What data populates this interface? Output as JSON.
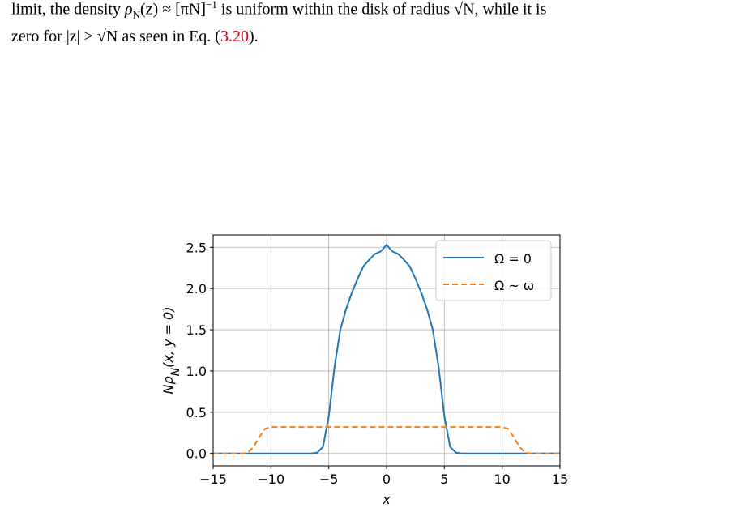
{
  "paragraph": [
    [
      {
        "text": "limit, the density "
      },
      {
        "text": "ρ",
        "style": "italic"
      },
      {
        "text": "N",
        "style": "sub"
      },
      {
        "text": "(z) ≈ [πN]"
      },
      {
        "text": "−1",
        "style": "sup"
      },
      {
        "text": " is uniform within the disk of radius √N, while it is"
      }
    ],
    [
      {
        "text": "zero for |z| > √N as seen in Eq. ("
      },
      {
        "text": "3.20",
        "style": "ref"
      },
      {
        "text": ")."
      }
    ]
  ],
  "chart_data": {
    "type": "line",
    "xlabel": "x",
    "ylabel": [
      "Nρ",
      "N",
      "(x, y = 0)"
    ],
    "x": [
      -15,
      -14.5,
      -14,
      -13.5,
      -13,
      -12.5,
      -12,
      -11.5,
      -11,
      -10.5,
      -10,
      -9.5,
      -9,
      -8.5,
      -8,
      -7.5,
      -7,
      -6.5,
      -6,
      -5.5,
      -5,
      -4.5,
      -4,
      -3.5,
      -3,
      -2.5,
      -2,
      -1.5,
      -1,
      -0.5,
      0,
      0.5,
      1,
      1.5,
      2,
      2.5,
      3,
      3.5,
      4,
      4.5,
      5,
      5.5,
      6,
      6.5,
      7,
      7.5,
      8,
      8.5,
      9,
      9.5,
      10,
      10.5,
      11,
      11.5,
      12,
      12.5,
      13,
      13.5,
      14,
      14.5,
      15
    ],
    "series": [
      {
        "name": "Ω = 0",
        "color": "#1f77b4",
        "dash": false,
        "values": [
          0,
          0,
          0,
          0,
          0,
          0,
          0,
          0,
          0,
          0,
          0,
          0,
          0,
          0,
          0,
          0,
          0,
          0,
          0.01,
          0.08,
          0.45,
          1.05,
          1.5,
          1.75,
          1.95,
          2.12,
          2.27,
          2.35,
          2.42,
          2.45,
          2.53,
          2.45,
          2.42,
          2.35,
          2.27,
          2.12,
          1.95,
          1.75,
          1.5,
          1.05,
          0.45,
          0.08,
          0.01,
          0,
          0,
          0,
          0,
          0,
          0,
          0,
          0,
          0,
          0,
          0,
          0,
          0,
          0,
          0,
          0,
          0,
          0
        ]
      },
      {
        "name": "Ω ~ ω",
        "color": "#ff7f0e",
        "dash": true,
        "values": [
          0,
          0,
          0,
          0,
          0,
          0,
          0.01,
          0.08,
          0.2,
          0.3,
          0.32,
          0.32,
          0.32,
          0.32,
          0.32,
          0.32,
          0.32,
          0.32,
          0.32,
          0.32,
          0.32,
          0.32,
          0.32,
          0.32,
          0.32,
          0.32,
          0.32,
          0.32,
          0.32,
          0.32,
          0.32,
          0.32,
          0.32,
          0.32,
          0.32,
          0.32,
          0.32,
          0.32,
          0.32,
          0.32,
          0.32,
          0.32,
          0.32,
          0.32,
          0.32,
          0.32,
          0.32,
          0.32,
          0.32,
          0.32,
          0.32,
          0.3,
          0.2,
          0.08,
          0.01,
          0,
          0,
          0,
          0,
          0,
          0
        ]
      }
    ],
    "xlim": [
      -15,
      15
    ],
    "ylim": [
      -0.15,
      2.65
    ],
    "xticks": [
      {
        "value": -15,
        "label": "−15"
      },
      {
        "value": -10,
        "label": "−10"
      },
      {
        "value": -5,
        "label": "−5"
      },
      0,
      5,
      10,
      15
    ],
    "yticks": [
      {
        "value": 0,
        "label": "0.0"
      },
      0.5,
      {
        "value": 1,
        "label": "1.0"
      },
      1.5,
      {
        "value": 2,
        "label": "2.0"
      },
      2.5
    ],
    "grid": true,
    "legend": "upper-right"
  }
}
